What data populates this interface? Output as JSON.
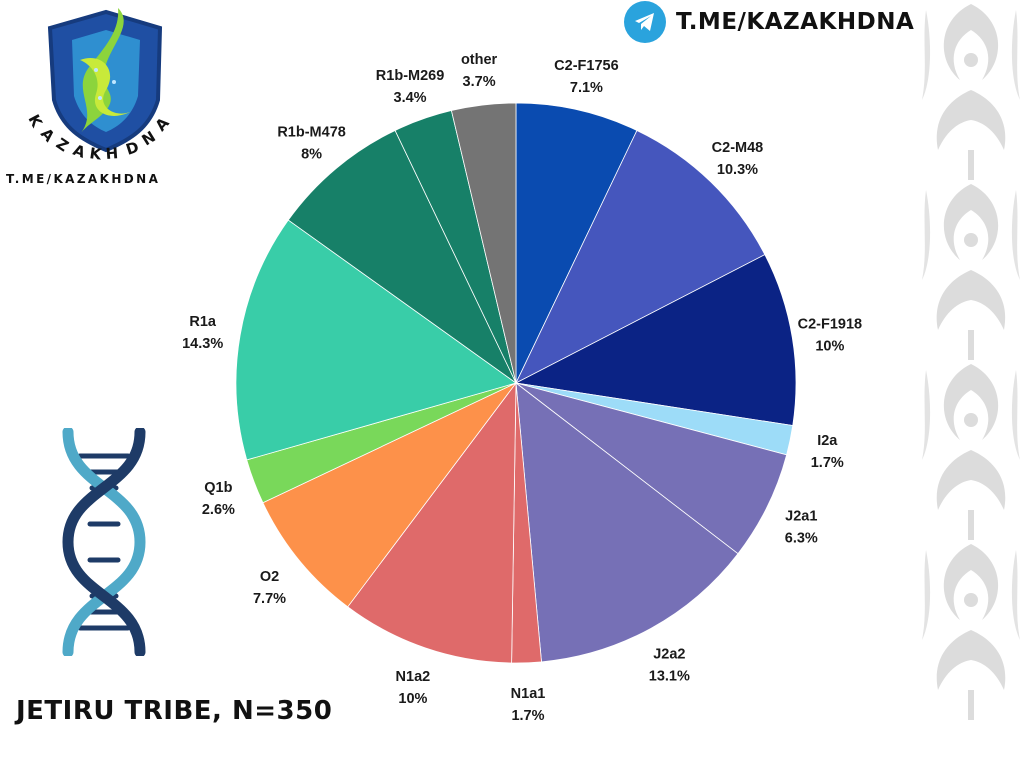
{
  "branding": {
    "logo_text": "KAZAKH DNA",
    "logo_caption": "T.ME/KAZAKHDNA",
    "telegram_handle": "T.ME/KAZAKHDNA",
    "telegram_icon": "telegram-paper-plane-icon",
    "dna_icon": "dna-helix-icon"
  },
  "footer": {
    "title": "JETIRU TRIBE, N=350"
  },
  "colors": {
    "ornament": "#dedede",
    "telegram": "#2aa3dd"
  },
  "chart_data": {
    "type": "pie",
    "start": "top, clockwise",
    "slices": [
      {
        "label": "C2-F1756",
        "value_text": "7.1%",
        "value": 7.1,
        "color": "#0a4bb0"
      },
      {
        "label": "C2-M48",
        "value_text": "10.3%",
        "value": 10.3,
        "color": "#4556bd"
      },
      {
        "label": "C2-F1918",
        "value_text": "10%",
        "value": 10.0,
        "color": "#0b2385"
      },
      {
        "label": "I2a",
        "value_text": "1.7%",
        "value": 1.7,
        "color": "#9ddcf8"
      },
      {
        "label": "J2a1",
        "value_text": "6.3%",
        "value": 6.3,
        "color": "#7670b6"
      },
      {
        "label": "J2a2",
        "value_text": "13.1%",
        "value": 13.1,
        "color": "#7670b6"
      },
      {
        "label": "N1a1",
        "value_text": "1.7%",
        "value": 1.7,
        "color": "#df6a6a"
      },
      {
        "label": "N1a2",
        "value_text": "10%",
        "value": 10.0,
        "color": "#df6a6a"
      },
      {
        "label": "O2",
        "value_text": "7.7%",
        "value": 7.7,
        "color": "#fd914a"
      },
      {
        "label": "Q1b",
        "value_text": "2.6%",
        "value": 2.6,
        "color": "#79d85a"
      },
      {
        "label": "R1a",
        "value_text": "14.3%",
        "value": 14.3,
        "color": "#39cda8"
      },
      {
        "label": "R1b-M478",
        "value_text": "8%",
        "value": 8.0,
        "color": "#178068"
      },
      {
        "label": "R1b-M269",
        "value_text": "3.4%",
        "value": 3.4,
        "color": "#178068"
      },
      {
        "label": "other",
        "value_text": "3.7%",
        "value": 3.7,
        "color": "#747474"
      }
    ]
  }
}
